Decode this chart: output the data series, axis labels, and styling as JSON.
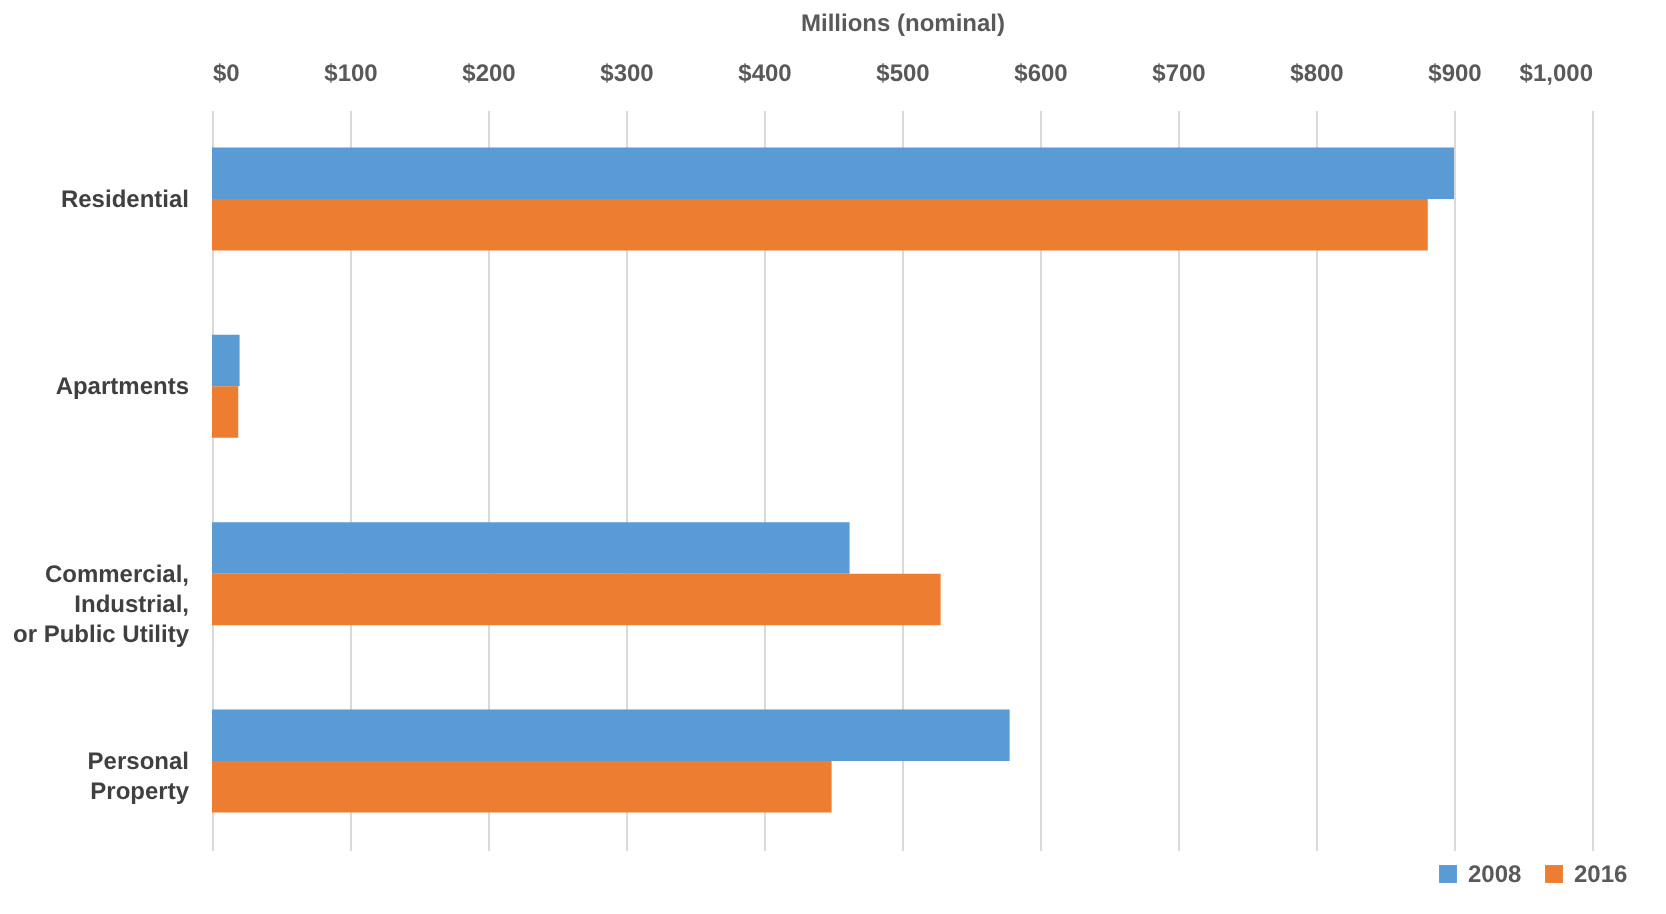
{
  "chart_data": {
    "type": "bar",
    "orientation": "horizontal",
    "xlabel": "Millions (nominal)",
    "categories": [
      "Residential",
      "Apartments",
      "Commercial,\nIndustrial,\nor Public Utility",
      "Personal\nProperty"
    ],
    "series": [
      {
        "name": "2008",
        "color": "#5b9bd5",
        "values": [
          900,
          20,
          462,
          578
        ]
      },
      {
        "name": "2016",
        "color": "#ed7d31",
        "values": [
          881,
          19,
          528,
          449
        ]
      }
    ],
    "xlim": [
      0,
      1000
    ],
    "xticks": [
      {
        "value": 0,
        "label": "$0"
      },
      {
        "value": 100,
        "label": "$100"
      },
      {
        "value": 200,
        "label": "$200"
      },
      {
        "value": 300,
        "label": "$300"
      },
      {
        "value": 400,
        "label": "$400"
      },
      {
        "value": 500,
        "label": "$500"
      },
      {
        "value": 600,
        "label": "$600"
      },
      {
        "value": 700,
        "label": "$700"
      },
      {
        "value": 800,
        "label": "$800"
      },
      {
        "value": 900,
        "label": "$900"
      },
      {
        "value": 1000,
        "label": "$1,000"
      }
    ],
    "grid": "x",
    "legend": "bottom right"
  }
}
